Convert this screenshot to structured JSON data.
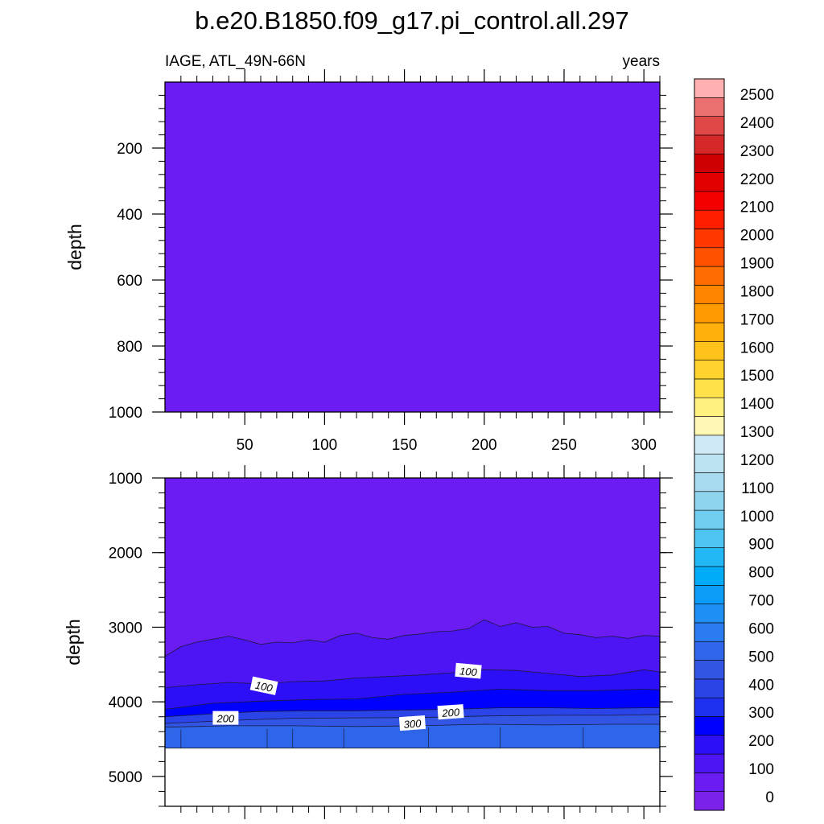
{
  "title": "b.e20.B1850.f09_g17.pi_control.all.297",
  "left_string": "IAGE, ATL_49N-66N",
  "right_string": "years",
  "colors": {
    "background": "#ffffff",
    "missing": "#ffffff",
    "contour_line": "#1a1a40"
  },
  "colorbar": {
    "levels": [
      0,
      100,
      200,
      300,
      400,
      500,
      600,
      700,
      800,
      900,
      1000,
      1100,
      1200,
      1300,
      1400,
      1500,
      1600,
      1700,
      1800,
      1900,
      2000,
      2100,
      2200,
      2300,
      2400,
      2500
    ],
    "labels": [
      "2500",
      "2400",
      "2300",
      "2200",
      "2100",
      "2000",
      "1900",
      "1800",
      "1700",
      "1600",
      "1500",
      "1400",
      "1300",
      "1200",
      "1100",
      "1000",
      "900",
      "800",
      "700",
      "600",
      "500",
      "400",
      "300",
      "200",
      "100",
      "0"
    ],
    "colors": [
      "#7b22ea",
      "#6a1cf2",
      "#4d14f4",
      "#2c0ef7",
      "#0000ff",
      "#1e30f0",
      "#2a44e8",
      "#3355e4",
      "#2e66ea",
      "#2a7cf0",
      "#1f8ff5",
      "#0b9df8",
      "#00abf8",
      "#22b8f5",
      "#4ec4f2",
      "#71cdf0",
      "#8fd4ee",
      "#a8dbef",
      "#bde2f2",
      "#cfe9f6",
      "#fff8b4",
      "#fff080",
      "#ffe24a",
      "#ffd22e",
      "#ffc21a",
      "#ffb00a",
      "#ff9a00",
      "#ff8400",
      "#ff6c00",
      "#ff5200",
      "#ff3800",
      "#ff1e00",
      "#f50000",
      "#e20000",
      "#cf0000",
      "#d62828",
      "#e04848",
      "#ea7070",
      "#ffb0b0"
    ]
  },
  "chart_data": [
    {
      "panel": "upper",
      "type": "heatmap",
      "title": "",
      "xlabel": "",
      "ylabel": "depth",
      "xlim": [
        0,
        310
      ],
      "ylim": [
        1000,
        0
      ],
      "x_ticks": [
        50,
        100,
        150,
        200,
        250,
        300
      ],
      "x_tick_labels": [
        "50",
        "100",
        "150",
        "200",
        "250",
        "300"
      ],
      "y_ticks": [
        200,
        400,
        600,
        800,
        1000
      ],
      "y_tick_labels": [
        "200",
        "400",
        "600",
        "800",
        "1000"
      ],
      "fill_levels": [
        0
      ],
      "note_values": "uniform 0-100 year band throughout 0-1000 m"
    },
    {
      "panel": "lower",
      "type": "heatmap",
      "title": "",
      "xlabel": "",
      "ylabel": "depth",
      "xlim": [
        0,
        310
      ],
      "ylim": [
        5400,
        1000
      ],
      "y_ticks": [
        1000,
        2000,
        3000,
        4000,
        5000
      ],
      "y_tick_labels": [
        "1000",
        "2000",
        "3000",
        "4000",
        "5000"
      ],
      "ocean_floor_depth": 4620,
      "contours": [
        {
          "level": 50,
          "x": [
            0,
            10,
            20,
            30,
            40,
            50,
            60,
            70,
            80,
            90,
            100,
            110,
            120,
            130,
            140,
            150,
            160,
            170,
            180,
            190,
            200,
            210,
            220,
            230,
            240,
            250,
            260,
            270,
            280,
            290,
            300,
            310
          ],
          "depth": [
            3390,
            3260,
            3200,
            3160,
            3120,
            3170,
            3230,
            3200,
            3210,
            3170,
            3200,
            3110,
            3080,
            3140,
            3160,
            3110,
            3090,
            3060,
            3050,
            3020,
            2900,
            2990,
            2940,
            3000,
            2990,
            3080,
            3100,
            3140,
            3120,
            3150,
            3110,
            3120
          ]
        },
        {
          "level": 100,
          "x": [
            0,
            20,
            40,
            60,
            80,
            100,
            120,
            140,
            160,
            180,
            200,
            220,
            240,
            260,
            280,
            300,
            310
          ],
          "depth": [
            3810,
            3770,
            3740,
            3760,
            3730,
            3720,
            3680,
            3660,
            3640,
            3610,
            3570,
            3580,
            3620,
            3660,
            3640,
            3570,
            3600
          ]
        },
        {
          "level": 150,
          "x": [
            0,
            30,
            60,
            90,
            120,
            150,
            180,
            210,
            240,
            270,
            300,
            310
          ],
          "depth": [
            4100,
            4020,
            3990,
            3970,
            3960,
            3900,
            3870,
            3830,
            3850,
            3850,
            3830,
            3840
          ]
        },
        {
          "level": 200,
          "x": [
            0,
            30,
            60,
            90,
            120,
            150,
            180,
            210,
            240,
            270,
            300,
            310
          ],
          "depth": [
            4200,
            4160,
            4130,
            4120,
            4120,
            4110,
            4100,
            4080,
            4080,
            4090,
            4080,
            4080
          ]
        },
        {
          "level": 250,
          "x": [
            0,
            40,
            80,
            120,
            160,
            200,
            240,
            280,
            310
          ],
          "depth": [
            4290,
            4250,
            4220,
            4215,
            4210,
            4190,
            4180,
            4180,
            4170
          ]
        },
        {
          "level": 300,
          "x": [
            0,
            40,
            80,
            120,
            160,
            200,
            240,
            280,
            310
          ],
          "depth": [
            4340,
            4320,
            4320,
            4330,
            4320,
            4300,
            4310,
            4300,
            4300
          ]
        }
      ],
      "contour_labels": [
        {
          "text": "100",
          "x": 62,
          "depth": 3790,
          "angle": 12
        },
        {
          "text": "100",
          "x": 190,
          "depth": 3590,
          "angle": 5
        },
        {
          "text": "200",
          "x": 38,
          "depth": 4220,
          "angle": 0
        },
        {
          "text": "200",
          "x": 179,
          "depth": 4140,
          "angle": -4
        },
        {
          "text": "300",
          "x": 155,
          "depth": 4290,
          "angle": -4
        }
      ]
    }
  ]
}
